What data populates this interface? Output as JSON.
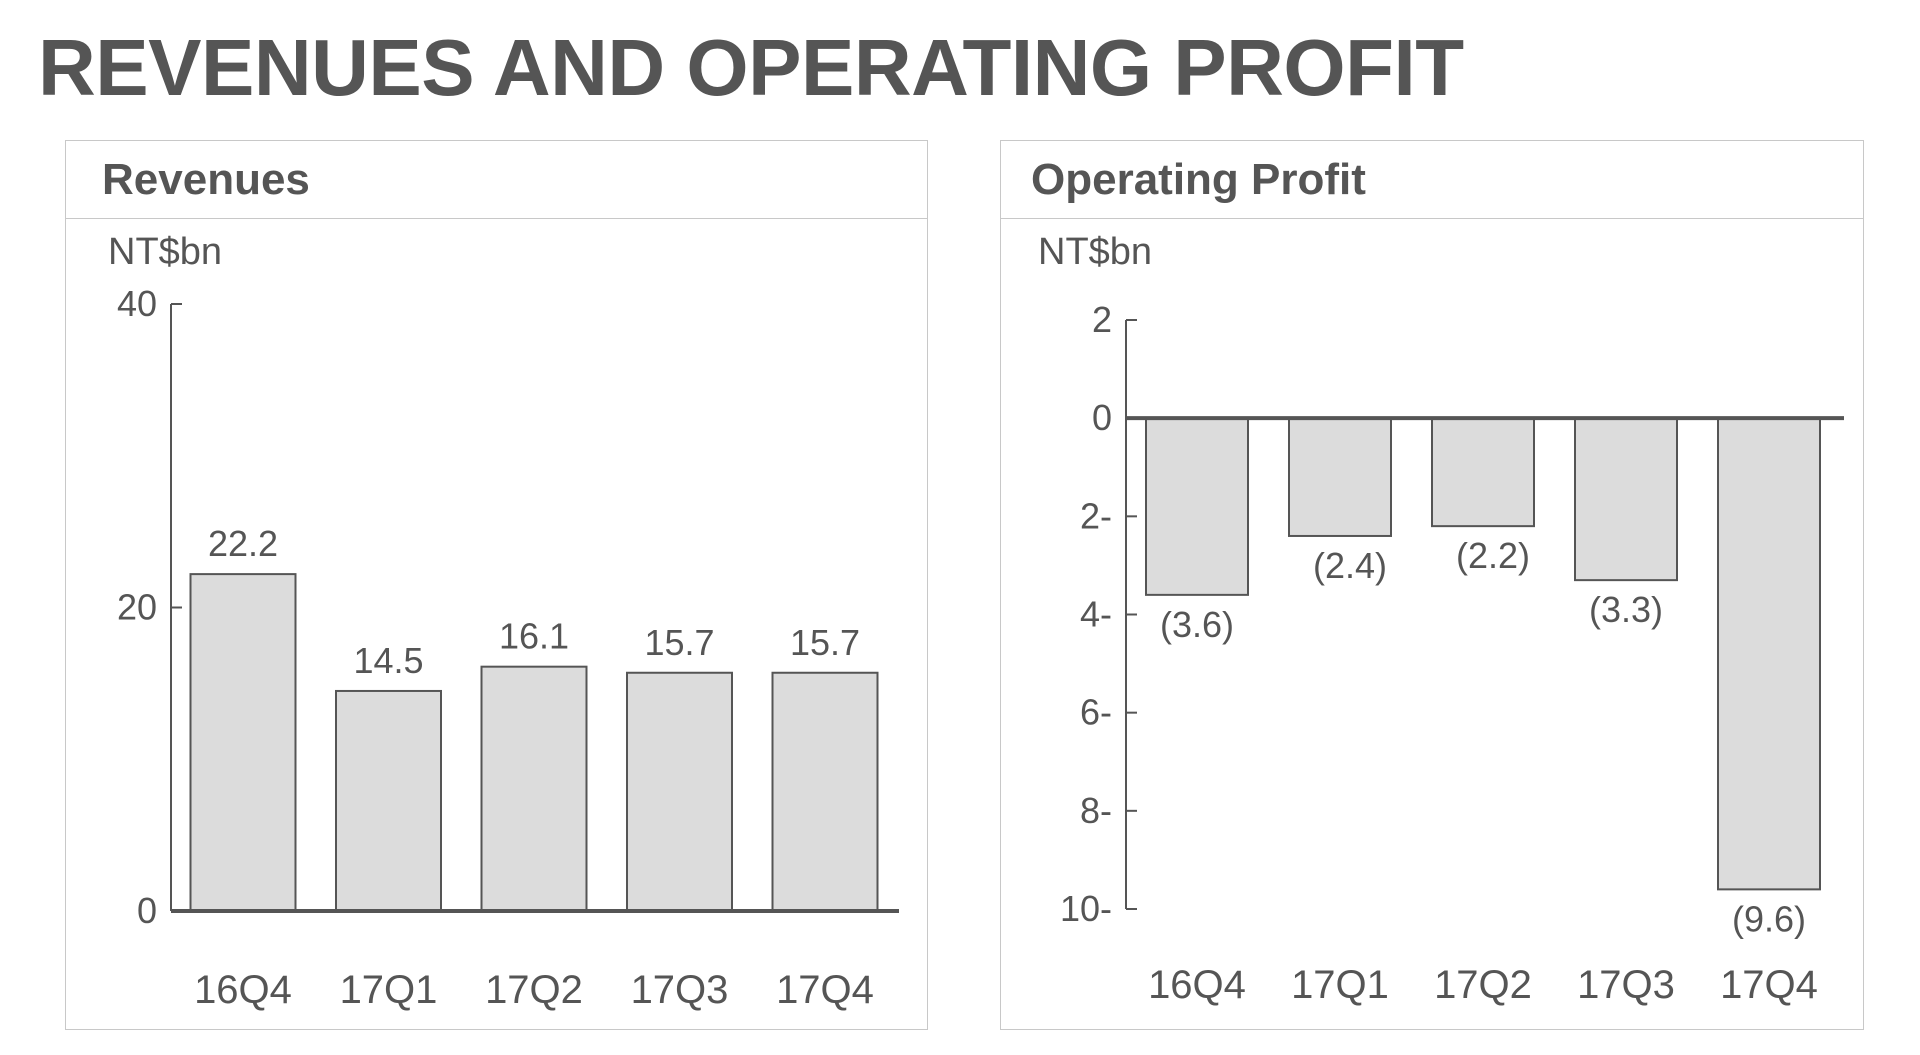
{
  "page": {
    "title": "REVENUES AND OPERATING PROFIT"
  },
  "colors": {
    "bar_fill": "#dcdcdc",
    "bar_stroke": "#555555",
    "axis": "#555555",
    "text": "#555555",
    "panel_border": "#c8c8c8"
  },
  "chart_data": [
    {
      "type": "bar",
      "title": "Revenues",
      "ylabel": "NT$bn",
      "xlabel": "",
      "categories": [
        "16Q4",
        "17Q1",
        "17Q2",
        "17Q3",
        "17Q4"
      ],
      "values": [
        22.2,
        14.5,
        16.1,
        15.7,
        15.7
      ],
      "value_labels": [
        "22.2",
        "14.5",
        "16.1",
        "15.7",
        "15.7"
      ],
      "ylim": [
        0,
        40
      ],
      "yticks": [
        0,
        20,
        40
      ],
      "ytick_labels": [
        "0",
        "20",
        "40"
      ],
      "grid": false,
      "legend": "none"
    },
    {
      "type": "bar",
      "title": "Operating Profit",
      "ylabel": "NT$bn",
      "xlabel": "",
      "categories": [
        "16Q4",
        "17Q1",
        "17Q2",
        "17Q3",
        "17Q4"
      ],
      "values": [
        -3.6,
        -2.4,
        -2.2,
        -3.3,
        -9.6
      ],
      "value_labels": [
        "(3.6)",
        "(2.4)",
        "(2.2)",
        "(3.3)",
        "(9.6)"
      ],
      "ylim": [
        -10,
        2
      ],
      "yticks": [
        2,
        0,
        -2,
        -4,
        -6,
        -8,
        -10
      ],
      "ytick_labels": [
        "2",
        "0",
        "2-",
        "4-",
        "6-",
        "8-",
        "10-"
      ],
      "grid": false,
      "legend": "none"
    }
  ]
}
